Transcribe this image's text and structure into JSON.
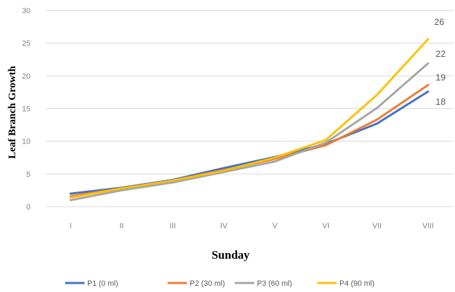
{
  "chart_data": {
    "type": "line",
    "title": "",
    "xlabel": "Sunday",
    "ylabel": "Leaf Branch Growth",
    "categories": [
      "I",
      "II",
      "III",
      "IV",
      "V",
      "VI",
      "VII",
      "VIII"
    ],
    "ytick_labels": [
      "0",
      "5",
      "10",
      "15",
      "20",
      "25",
      "30"
    ],
    "ytick_values": [
      0,
      5,
      10,
      15,
      20,
      25,
      30
    ],
    "ylim": [
      0,
      30
    ],
    "grid": "horizontal",
    "legend": "bottom",
    "series": [
      {
        "name": "P1 (0 ml)",
        "color": "#4472c4",
        "values": [
          2.0,
          2.9,
          4.1,
          5.9,
          7.6,
          9.6,
          12.7,
          17.6
        ],
        "end_label": "18"
      },
      {
        "name": "P2 (30 ml)",
        "color": "#ed7d31",
        "values": [
          1.6,
          2.8,
          4.0,
          5.6,
          7.3,
          9.4,
          13.3,
          18.6
        ],
        "end_label": "19"
      },
      {
        "name": "P3 (60 ml)",
        "color": "#a5a5a5",
        "values": [
          1.0,
          2.5,
          3.7,
          5.3,
          6.9,
          9.8,
          15.1,
          21.9
        ],
        "end_label": "22"
      },
      {
        "name": "P4 (90 ml)",
        "color": "#ffc000",
        "values": [
          1.4,
          2.8,
          4.0,
          5.5,
          7.5,
          10.2,
          17.1,
          25.6
        ],
        "end_label": "26"
      }
    ]
  }
}
